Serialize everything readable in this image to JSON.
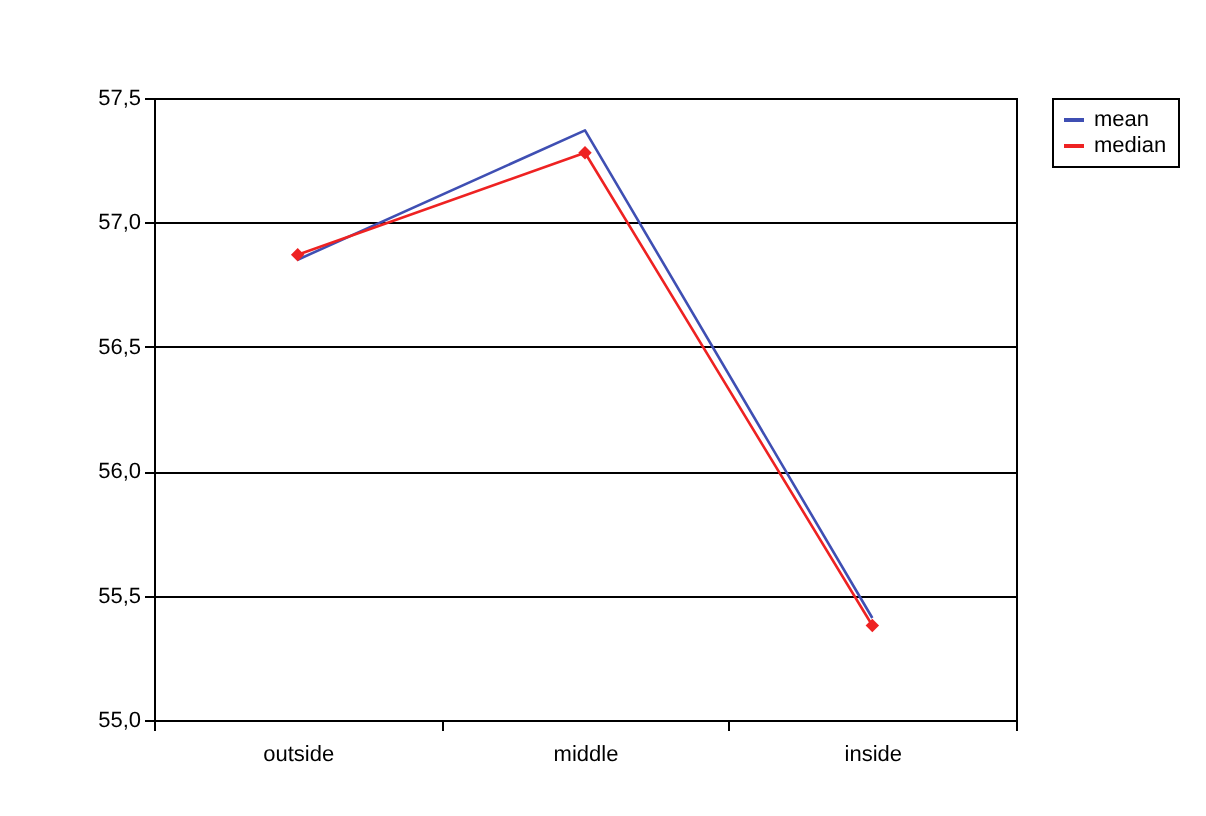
{
  "chart_data": {
    "type": "line",
    "categories": [
      "outside",
      "middle",
      "inside"
    ],
    "series": [
      {
        "name": "mean",
        "color": "#3f4fb3",
        "marker": "none",
        "values": [
          56.85,
          57.37,
          55.41
        ]
      },
      {
        "name": "median",
        "color": "#ee2222",
        "marker": "diamond",
        "values": [
          56.87,
          57.28,
          55.38
        ]
      }
    ],
    "ylim": [
      55.0,
      57.5
    ],
    "yticks": [
      {
        "value": 55.0,
        "label": "55,0"
      },
      {
        "value": 55.5,
        "label": "55,5"
      },
      {
        "value": 56.0,
        "label": "56,0"
      },
      {
        "value": 56.5,
        "label": "56,5"
      },
      {
        "value": 57.0,
        "label": "57,0"
      },
      {
        "value": 57.5,
        "label": "57,5"
      }
    ],
    "grid": "y",
    "legend": "right"
  }
}
